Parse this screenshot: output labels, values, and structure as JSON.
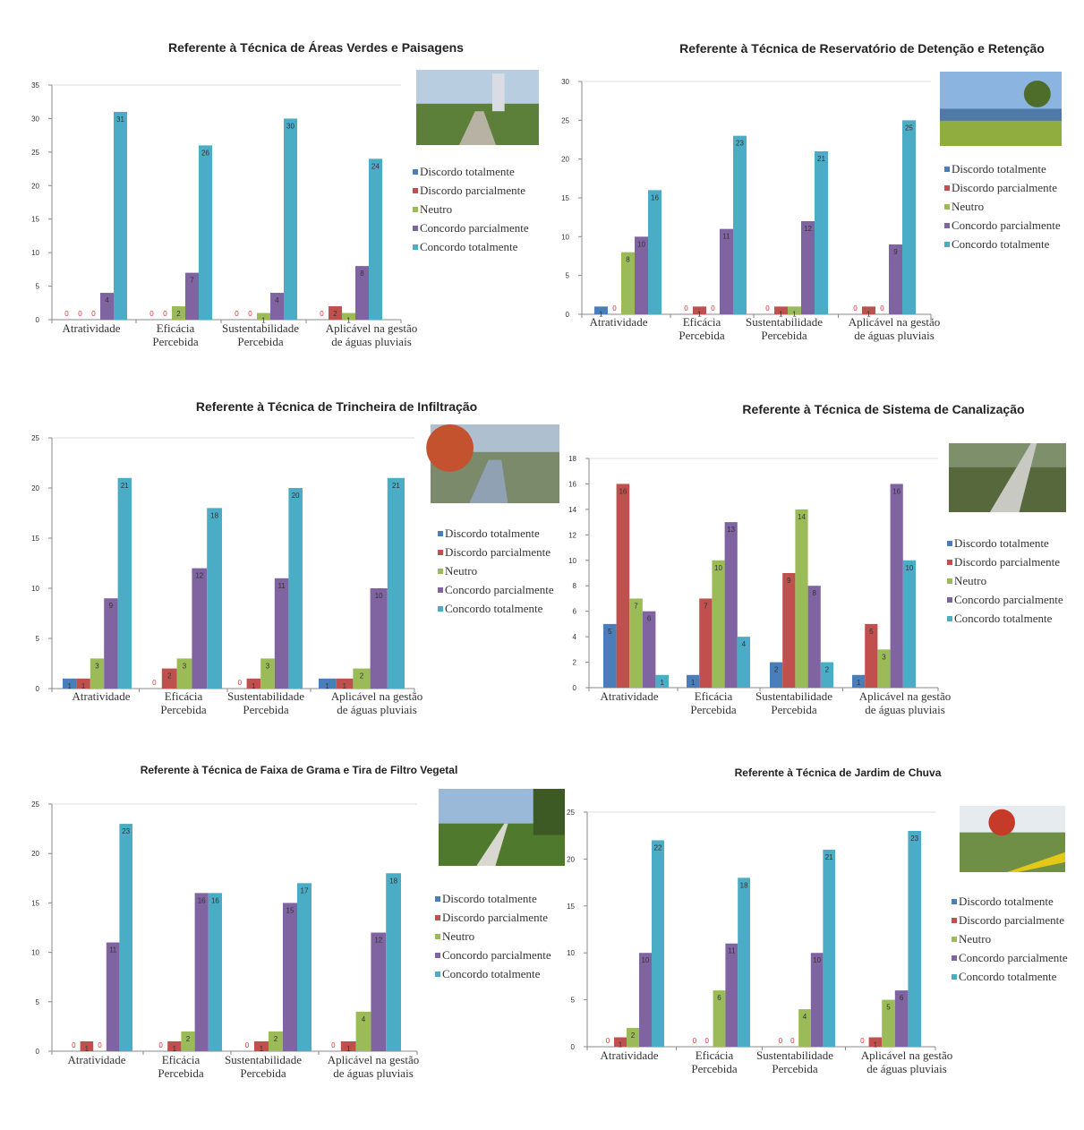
{
  "legend_labels": [
    "Discordo totalmente",
    "Discordo parcialmente",
    "Neutro",
    "Concordo parcialmente",
    "Concordo totalmente"
  ],
  "series_colors": [
    "#4a7ebb",
    "#c0504d",
    "#9bbb59",
    "#8064a2",
    "#4bacc6"
  ],
  "chart_data": [
    {
      "type": "bar",
      "title": "Referente à Técnica de Áreas Verdes e Paisagens",
      "photo": "park-trees-photo",
      "categories": [
        [
          "Atratividade"
        ],
        [
          "Eficácia",
          "Percebida"
        ],
        [
          "Sustentabilidade",
          "Percebida"
        ],
        [
          "Aplicável na gestão",
          "de águas pluviais"
        ]
      ],
      "ylim": [
        0,
        35
      ],
      "ystep": 5,
      "series": [
        {
          "name": "Discordo totalmente",
          "values": [
            0,
            0,
            0,
            0
          ]
        },
        {
          "name": "Discordo parcialmente",
          "values": [
            0,
            0,
            0,
            2
          ]
        },
        {
          "name": "Neutro",
          "values": [
            0,
            2,
            1,
            1
          ]
        },
        {
          "name": "Concordo parcialmente",
          "values": [
            4,
            7,
            4,
            8
          ]
        },
        {
          "name": "Concordo totalmente",
          "values": [
            31,
            26,
            30,
            24
          ]
        }
      ]
    },
    {
      "type": "bar",
      "title": "Referente à Técnica de Reservatório de Detenção e Retenção",
      "photo": "pond-fountain-photo",
      "categories": [
        [
          "Atratividade"
        ],
        [
          "Eficácia",
          "Percebida"
        ],
        [
          "Sustentabilidade",
          "Percebida"
        ],
        [
          "Aplicável na gestão",
          "de águas pluviais"
        ]
      ],
      "ylim": [
        0,
        30
      ],
      "ystep": 5,
      "series": [
        {
          "name": "Discordo totalmente",
          "values": [
            1,
            0,
            0,
            0
          ]
        },
        {
          "name": "Discordo parcialmente",
          "values": [
            0,
            1,
            1,
            1
          ]
        },
        {
          "name": "Neutro",
          "values": [
            8,
            0,
            1,
            0
          ]
        },
        {
          "name": "Concordo parcialmente",
          "values": [
            10,
            11,
            12,
            9
          ]
        },
        {
          "name": "Concordo totalmente",
          "values": [
            16,
            23,
            21,
            25
          ]
        }
      ]
    },
    {
      "type": "bar",
      "title": "Referente à Técnica de Trincheira de Infiltração",
      "photo": "infiltration-trench-photo",
      "categories": [
        [
          "Atratividade"
        ],
        [
          "Eficácia",
          "Percebida"
        ],
        [
          "Sustentabilidade",
          "Percebida"
        ],
        [
          "Aplicável na gestão",
          "de águas pluviais"
        ]
      ],
      "ylim": [
        0,
        25
      ],
      "ystep": 5,
      "series": [
        {
          "name": "Discordo totalmente",
          "values": [
            1,
            0,
            0,
            1
          ]
        },
        {
          "name": "Discordo parcialmente",
          "values": [
            1,
            2,
            1,
            1
          ]
        },
        {
          "name": "Neutro",
          "values": [
            3,
            3,
            3,
            2
          ]
        },
        {
          "name": "Concordo parcialmente",
          "values": [
            9,
            12,
            11,
            10
          ]
        },
        {
          "name": "Concordo totalmente",
          "values": [
            21,
            18,
            20,
            21
          ]
        }
      ]
    },
    {
      "type": "bar",
      "title": "Referente à Técnica de Sistema de Canalização",
      "photo": "drainage-channel-photo",
      "categories": [
        [
          "Atratividade"
        ],
        [
          "Eficácia",
          "Percebida"
        ],
        [
          "Sustentabilidade",
          "Percebida"
        ],
        [
          "Aplicável na gestão",
          "de águas pluviais"
        ]
      ],
      "ylim": [
        0,
        18
      ],
      "ystep": 2,
      "series": [
        {
          "name": "Discordo totalmente",
          "values": [
            5,
            1,
            2,
            1
          ]
        },
        {
          "name": "Discordo parcialmente",
          "values": [
            16,
            7,
            9,
            5
          ]
        },
        {
          "name": "Neutro",
          "values": [
            7,
            10,
            14,
            3
          ]
        },
        {
          "name": "Concordo parcialmente",
          "values": [
            6,
            13,
            8,
            16
          ]
        },
        {
          "name": "Concordo totalmente",
          "values": [
            1,
            4,
            2,
            10
          ]
        }
      ]
    },
    {
      "type": "bar",
      "title": "Referente à Técnica de Faixa de Grama e Tira de Filtro Vegetal",
      "photo": "grass-strip-photo",
      "categories": [
        [
          "Atratividade"
        ],
        [
          "Eficácia",
          "Percebida"
        ],
        [
          "Sustentabilidade",
          "Percebida"
        ],
        [
          "Aplicável na gestão",
          "de águas pluviais"
        ]
      ],
      "ylim": [
        0,
        25
      ],
      "ystep": 5,
      "series": [
        {
          "name": "Discordo totalmente",
          "values": [
            0,
            0,
            0,
            0
          ]
        },
        {
          "name": "Discordo parcialmente",
          "values": [
            1,
            1,
            1,
            1
          ]
        },
        {
          "name": "Neutro",
          "values": [
            0,
            2,
            2,
            4
          ]
        },
        {
          "name": "Concordo parcialmente",
          "values": [
            11,
            16,
            15,
            12
          ]
        },
        {
          "name": "Concordo totalmente",
          "values": [
            23,
            16,
            17,
            18
          ]
        }
      ]
    },
    {
      "type": "bar",
      "title": "Referente à Técnica de Jardim de Chuva",
      "photo": "rain-garden-photo",
      "categories": [
        [
          "Atratividade"
        ],
        [
          "Eficácia",
          "Percebida"
        ],
        [
          "Sustentabilidade",
          "Percebida"
        ],
        [
          "Aplicável na gestão",
          "de águas pluviais"
        ]
      ],
      "ylim": [
        0,
        25
      ],
      "ystep": 5,
      "series": [
        {
          "name": "Discordo totalmente",
          "values": [
            0,
            0,
            0,
            0
          ]
        },
        {
          "name": "Discordo parcialmente",
          "values": [
            1,
            0,
            0,
            1
          ]
        },
        {
          "name": "Neutro",
          "values": [
            2,
            6,
            4,
            5
          ]
        },
        {
          "name": "Concordo parcialmente",
          "values": [
            10,
            11,
            10,
            6
          ]
        },
        {
          "name": "Concordo totalmente",
          "values": [
            22,
            18,
            21,
            23
          ]
        }
      ]
    }
  ]
}
